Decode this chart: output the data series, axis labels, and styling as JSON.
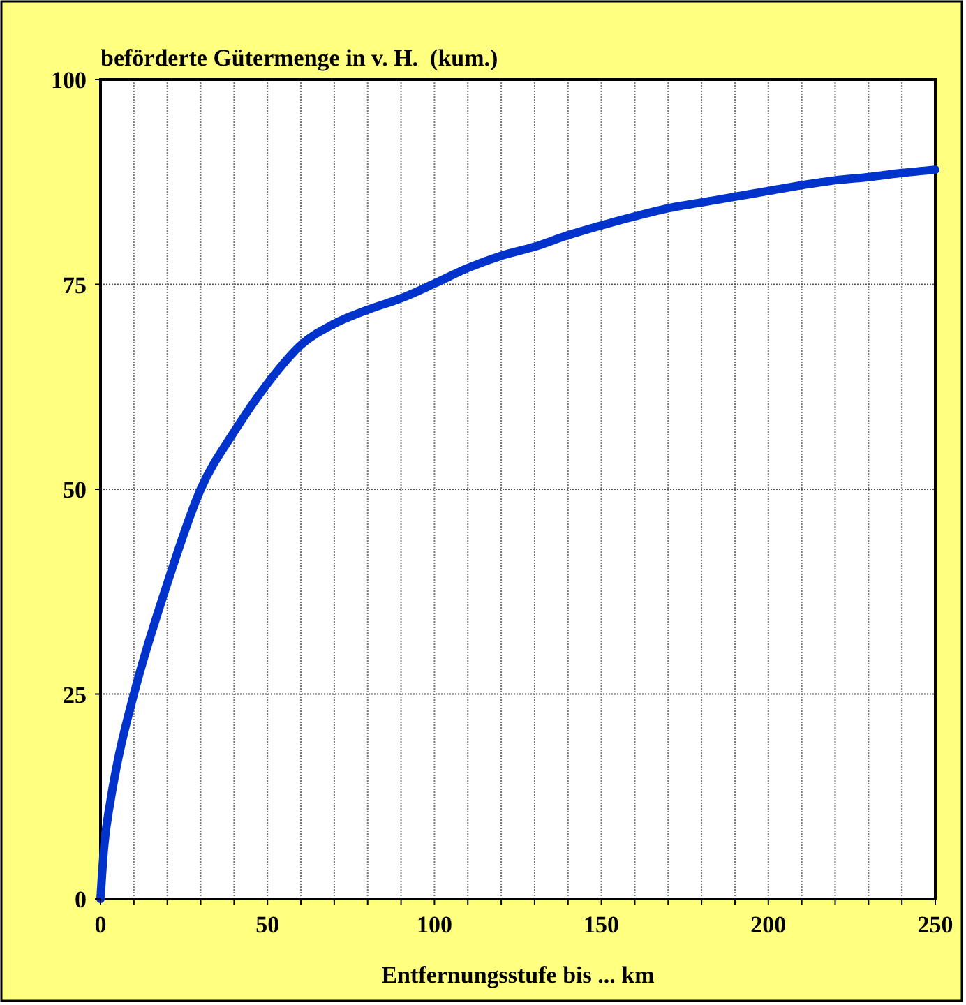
{
  "chart_data": {
    "type": "line",
    "title": "beförderte Gütermenge in v. H.  (kum.)",
    "xlabel": "Entfernungsstufe bis ... km",
    "x": [
      0,
      1,
      3,
      5,
      10,
      20,
      30,
      40,
      50,
      60,
      70,
      80,
      90,
      100,
      110,
      120,
      130,
      140,
      150,
      160,
      170,
      180,
      190,
      200,
      210,
      220,
      230,
      240,
      250
    ],
    "series": [
      {
        "color": "#0033cc",
        "values": [
          0,
          6,
          12,
          16.5,
          25,
          38.5,
          50,
          57,
          62.9,
          67.6,
          70.2,
          71.9,
          73.3,
          75.1,
          77,
          78.5,
          79.6,
          81,
          82.2,
          83.3,
          84.3,
          85,
          85.7,
          86.4,
          87.1,
          87.7,
          88.1,
          88.6,
          89
        ]
      }
    ],
    "xlim": [
      0,
      250
    ],
    "xticks": [
      0,
      {
        "value": 10,
        "label": null
      },
      {
        "value": 20,
        "label": null
      },
      {
        "value": 30,
        "label": null
      },
      {
        "value": 40,
        "label": null
      },
      50,
      {
        "value": 60,
        "label": null
      },
      {
        "value": 70,
        "label": null
      },
      {
        "value": 80,
        "label": null
      },
      {
        "value": 90,
        "label": null
      },
      100,
      {
        "value": 110,
        "label": null
      },
      {
        "value": 120,
        "label": null
      },
      {
        "value": 130,
        "label": null
      },
      {
        "value": 140,
        "label": null
      },
      150,
      {
        "value": 160,
        "label": null
      },
      {
        "value": 170,
        "label": null
      },
      {
        "value": 180,
        "label": null
      },
      {
        "value": 190,
        "label": null
      },
      200,
      {
        "value": 210,
        "label": null
      },
      {
        "value": 220,
        "label": null
      },
      {
        "value": 230,
        "label": null
      },
      {
        "value": 240,
        "label": null
      },
      250
    ],
    "ylim": [
      0,
      100
    ],
    "yticks": [
      0,
      25,
      50,
      75,
      100
    ],
    "grid": true,
    "marker": "none",
    "line_style": "solid"
  }
}
